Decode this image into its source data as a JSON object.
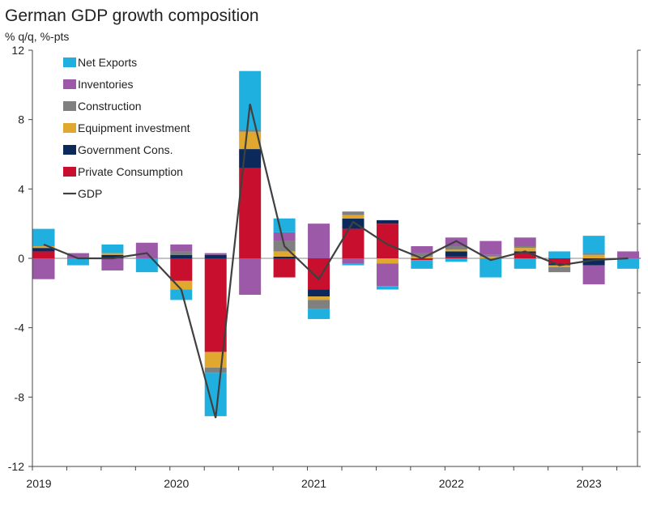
{
  "chart_data": {
    "type": "bar",
    "title": "German GDP growth composition",
    "subtitle": "% q/q, %-pts",
    "ylim": [
      -12,
      12
    ],
    "y_ticks": [
      12,
      8,
      4,
      0,
      -4,
      -8,
      -12
    ],
    "x_tick_labels": [
      "2019",
      "2020",
      "2021",
      "2022",
      "2023"
    ],
    "quarters": [
      "2019Q1",
      "2019Q2",
      "2019Q3",
      "2019Q4",
      "2020Q1",
      "2020Q2",
      "2020Q3",
      "2020Q4",
      "2021Q1",
      "2021Q2",
      "2021Q3",
      "2021Q4",
      "2022Q1",
      "2022Q2",
      "2022Q3",
      "2022Q4",
      "2023Q1",
      "2023Q2"
    ],
    "series": [
      {
        "name": "Private Consumption",
        "color": "#c8102e",
        "values": [
          0.4,
          0.0,
          0.0,
          0.0,
          -1.3,
          -5.4,
          5.2,
          -1.1,
          -1.8,
          1.7,
          2.0,
          -0.1,
          0.1,
          0.0,
          0.3,
          -0.3,
          0.0,
          0.0
        ]
      },
      {
        "name": "Government Cons.",
        "color": "#0b2a5b",
        "values": [
          0.2,
          0.0,
          0.2,
          0.0,
          0.2,
          0.2,
          1.1,
          0.1,
          -0.4,
          0.6,
          0.2,
          0.0,
          0.3,
          0.0,
          0.1,
          -0.1,
          -0.4,
          0.0
        ]
      },
      {
        "name": "Equipment investment",
        "color": "#e0a82e",
        "values": [
          0.1,
          0.0,
          0.1,
          0.0,
          -0.5,
          -0.9,
          1.0,
          0.3,
          -0.2,
          0.2,
          -0.3,
          0.1,
          0.1,
          0.1,
          0.2,
          -0.1,
          0.2,
          0.0
        ]
      },
      {
        "name": "Construction",
        "color": "#808080",
        "values": [
          0.0,
          0.0,
          0.0,
          0.0,
          0.2,
          -0.3,
          0.1,
          0.6,
          -0.5,
          0.2,
          0.0,
          0.2,
          0.2,
          0.1,
          0.1,
          -0.3,
          0.1,
          0.0
        ]
      },
      {
        "name": "Inventories",
        "color": "#9b59a8",
        "values": [
          -1.2,
          0.3,
          -0.7,
          0.9,
          0.4,
          0.1,
          -2.1,
          0.5,
          2.0,
          -0.3,
          -1.3,
          0.4,
          0.5,
          0.8,
          0.5,
          0.0,
          -1.1,
          0.4
        ]
      },
      {
        "name": "Net Exports",
        "color": "#1fb0e0",
        "values": [
          1.0,
          -0.4,
          0.5,
          -0.8,
          -0.6,
          -2.5,
          3.4,
          0.8,
          -0.6,
          -0.1,
          -0.2,
          -0.5,
          -0.2,
          -1.1,
          -0.6,
          0.4,
          1.0,
          -0.6
        ]
      }
    ],
    "legend_order": [
      "Net Exports",
      "Inventories",
      "Construction",
      "Equipment investment",
      "Government Cons.",
      "Private Consumption"
    ],
    "gdp": {
      "name": "GDP",
      "color": "#404040",
      "values": [
        0.8,
        0.0,
        0.0,
        0.3,
        -1.8,
        -9.2,
        8.9,
        0.7,
        -1.2,
        2.1,
        0.8,
        0.0,
        1.0,
        -0.1,
        0.4,
        -0.4,
        -0.1,
        0.0
      ]
    }
  }
}
